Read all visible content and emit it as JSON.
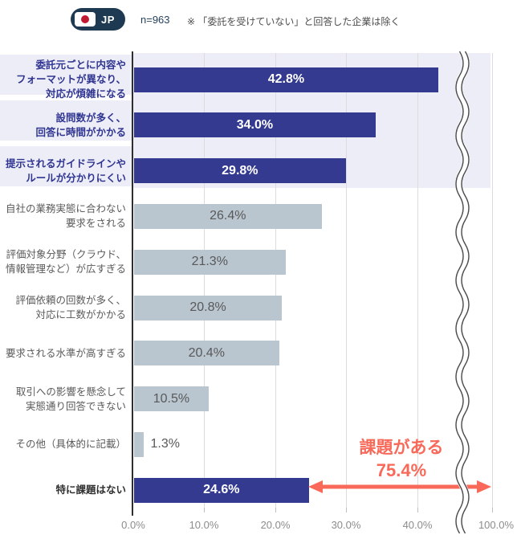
{
  "header": {
    "country_code": "JP",
    "sample_size": "n=963",
    "note": "※ 「委託を受けていない」と回答した企業は除く"
  },
  "chart_data": {
    "type": "bar",
    "orientation": "horizontal",
    "x_axis": {
      "lim": [
        0,
        100
      ],
      "ticks": [
        "0.0%",
        "10.0%",
        "20.0%",
        "30.0%",
        "40.0%",
        "100.0%"
      ],
      "tick_values": [
        0,
        10,
        20,
        30,
        40,
        100
      ],
      "axis_break_between": [
        40,
        100
      ],
      "grid": true
    },
    "rows": [
      {
        "category": "委託元ごとに内容や\nフォーマットが異なり、\n対応が煩雑になる",
        "value": 42.8,
        "display": "42.8%",
        "emphasis": true,
        "band": true,
        "label_style": "navy",
        "label_outside": false
      },
      {
        "category": "設問数が多く、\n回答に時間がかかる",
        "value": 34.0,
        "display": "34.0%",
        "emphasis": true,
        "band": true,
        "label_style": "navy",
        "label_outside": false
      },
      {
        "category": "提示されるガイドラインや\nルールが分かりにくい",
        "value": 29.8,
        "display": "29.8%",
        "emphasis": true,
        "band": true,
        "label_style": "navy",
        "label_outside": false
      },
      {
        "category": "自社の業務実態に合わない\n要求をされる",
        "value": 26.4,
        "display": "26.4%",
        "emphasis": false,
        "band": false,
        "label_style": "gray",
        "label_outside": false
      },
      {
        "category": "評価対象分野（クラウド、\n情報管理など）が広すぎる",
        "value": 21.3,
        "display": "21.3%",
        "emphasis": false,
        "band": false,
        "label_style": "gray",
        "label_outside": false
      },
      {
        "category": "評価依頼の回数が多く、\n対応に工数がかかる",
        "value": 20.8,
        "display": "20.8%",
        "emphasis": false,
        "band": false,
        "label_style": "gray",
        "label_outside": false
      },
      {
        "category": "要求される水準が高すぎる",
        "value": 20.4,
        "display": "20.4%",
        "emphasis": false,
        "band": false,
        "label_style": "gray",
        "label_outside": false
      },
      {
        "category": "取引への影響を懸念して\n実態通り回答できない",
        "value": 10.5,
        "display": "10.5%",
        "emphasis": false,
        "band": false,
        "label_style": "gray",
        "label_outside": false
      },
      {
        "category": "その他（具体的に記載）",
        "value": 1.3,
        "display": "1.3%",
        "emphasis": false,
        "band": false,
        "label_style": "gray",
        "label_outside": true
      },
      {
        "category": "特に課題はない",
        "value": 24.6,
        "display": "24.6%",
        "emphasis": true,
        "band": false,
        "label_style": "dark",
        "label_outside": false
      }
    ],
    "annotation": {
      "text": "課題がある",
      "value": "75.4%"
    },
    "colors": {
      "bar_navy": "#333A8F",
      "bar_gray": "#B9C5CF",
      "band": "#EDEDF8",
      "accent": "#F8695A",
      "badge": "#1D3A52",
      "flag": "#C01A32"
    }
  }
}
